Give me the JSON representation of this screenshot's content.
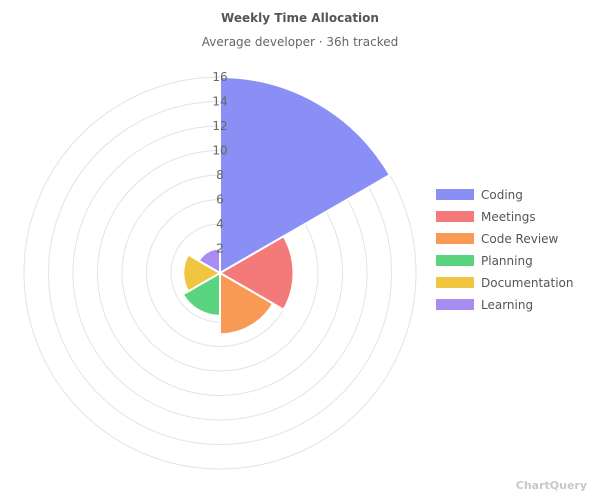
{
  "chart_data": {
    "type": "polar-area",
    "title": "Weekly Time Allocation",
    "subtitle": "Average developer · 36h tracked",
    "categories": [
      "Coding",
      "Meetings",
      "Code Review",
      "Planning",
      "Documentation",
      "Learning"
    ],
    "values": [
      16,
      6,
      5,
      3.5,
      3,
      2
    ],
    "colors": [
      "#8a8ff5",
      "#f47a7a",
      "#f89a55",
      "#5ad47e",
      "#f0c540",
      "#a88cf2"
    ],
    "r_axis": {
      "min": 0,
      "max": 16,
      "ticks": [
        "2",
        "4",
        "6",
        "8",
        "10",
        "12",
        "14",
        "16"
      ]
    },
    "legend_position": "right",
    "grid": true
  },
  "watermark": "ChartQuery"
}
